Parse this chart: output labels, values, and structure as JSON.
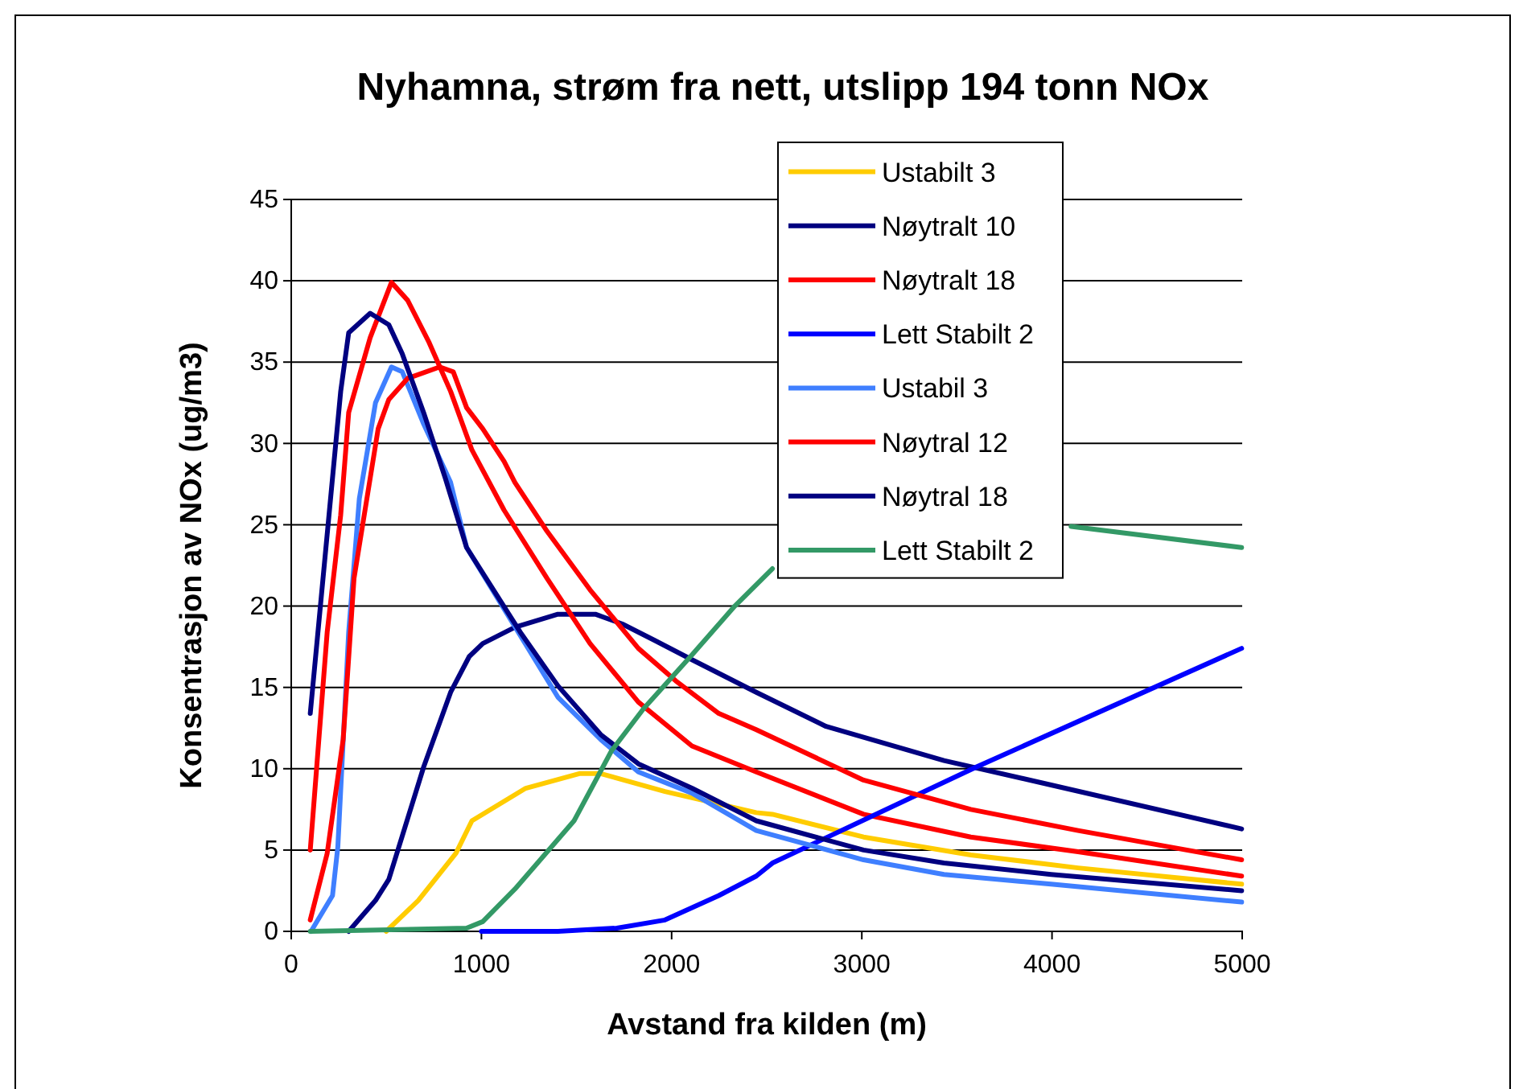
{
  "chart_data": {
    "type": "line",
    "title": "Nyhamna, strøm fra nett, utslipp 194 tonn NOx",
    "xlabel": "Avstand fra kilden (m)",
    "ylabel": "Konsentrasjon av NOx (ug/m3)",
    "xlim": [
      0,
      5000
    ],
    "xticks": [
      0,
      1000,
      2000,
      3000,
      4000,
      5000
    ],
    "ylim": [
      0,
      45
    ],
    "yticks": [
      0,
      5,
      10,
      15,
      20,
      25,
      30,
      35,
      40,
      45
    ],
    "grid": "y",
    "legend": "top right",
    "marker": "none",
    "line_style": "solid",
    "series": [
      {
        "name": "Ustabilt 3",
        "color": "#ffcc00",
        "x": [
          499,
          668,
          866,
          950,
          1233,
          1515,
          1627,
          1965,
          2445,
          2530,
          3009,
          3573,
          4137,
          4997
        ],
        "values": [
          0,
          1.9,
          4.8,
          6.8,
          8.8,
          9.7,
          9.7,
          8.6,
          7.3,
          7.2,
          5.8,
          4.7,
          3.9,
          2.9
        ]
      },
      {
        "name": "Nøytralt 10",
        "color": "#000080",
        "x": [
          302,
          443,
          513,
          696,
          838,
          936,
          1007,
          1176,
          1402,
          1599,
          1740,
          1909,
          2107,
          2445,
          2812,
          3432,
          3995,
          4997
        ],
        "values": [
          0,
          1.9,
          3.2,
          10.1,
          14.7,
          16.9,
          17.7,
          18.7,
          19.5,
          19.5,
          18.9,
          17.9,
          16.7,
          14.7,
          12.6,
          10.5,
          9.0,
          6.3
        ]
      },
      {
        "name": "Nøytralt 18",
        "color": "#ff0000",
        "x": [
          100,
          189,
          260,
          302,
          415,
          527,
          612,
          725,
          838,
          950,
          1119,
          1345,
          1571,
          1825,
          2107,
          2445,
          3009,
          3573,
          4137,
          4997
        ],
        "values": [
          5.0,
          18.4,
          25.6,
          31.9,
          36.5,
          39.9,
          38.8,
          36.2,
          33.2,
          29.6,
          25.9,
          21.7,
          17.7,
          14.1,
          11.4,
          9.8,
          7.2,
          5.8,
          4.9,
          3.4
        ]
      },
      {
        "name": "Lett Stabilt 2",
        "color": "#0000ff",
        "x": [
          1000,
          1402,
          1712,
          1965,
          2248,
          2445,
          2530,
          3601,
          4997
        ],
        "values": [
          0,
          0,
          0.2,
          0.7,
          2.2,
          3.4,
          4.2,
          10.1,
          17.4
        ]
      },
      {
        "name": "Ustabil 3",
        "color": "#3f7fff",
        "x": [
          104,
          217,
          245,
          302,
          358,
          443,
          527,
          584,
          696,
          838,
          922,
          1402,
          1627,
          1825,
          2107,
          2445,
          3009,
          3432,
          3995,
          4997
        ],
        "values": [
          0,
          2.2,
          5.2,
          18.4,
          26.6,
          32.5,
          34.7,
          34.4,
          31.2,
          27.6,
          23.6,
          14.4,
          11.8,
          9.8,
          8.5,
          6.2,
          4.4,
          3.5,
          2.9,
          1.8
        ]
      },
      {
        "name": "Nøytral 12",
        "color": "#ff0000",
        "x": [
          100,
          189,
          273,
          330,
          457,
          513,
          612,
          781,
          852,
          922,
          1007,
          1119,
          1176,
          1345,
          1571,
          1825,
          2022,
          2248,
          2445,
          3009,
          3573,
          4137,
          4997
        ],
        "values": [
          0.7,
          4.8,
          11.8,
          21.7,
          30.9,
          32.7,
          34.0,
          34.7,
          34.4,
          32.2,
          30.9,
          28.9,
          27.6,
          24.6,
          21.0,
          17.4,
          15.4,
          13.4,
          12.4,
          9.3,
          7.5,
          6.2,
          4.4
        ]
      },
      {
        "name": "Nøytral 18",
        "color": "#000080",
        "x": [
          100,
          260,
          302,
          415,
          513,
          584,
          696,
          809,
          922,
          1063,
          1204,
          1402,
          1627,
          1825,
          2107,
          2445,
          3009,
          3432,
          3995,
          4997
        ],
        "values": [
          13.4,
          33.2,
          36.8,
          38.0,
          37.3,
          35.5,
          31.9,
          27.9,
          23.6,
          21.0,
          18.4,
          15.1,
          12.1,
          10.3,
          8.8,
          6.8,
          5.0,
          4.2,
          3.5,
          2.5
        ]
      },
      {
        "name": "Lett Stabilt 2",
        "color": "#339966",
        "x": [
          100,
          922,
          1007,
          1176,
          1487,
          1684,
          1853,
          2107,
          2332,
          2530,
          3000,
          3500,
          4100,
          4997
        ],
        "values": [
          0,
          0.2,
          0.6,
          2.6,
          6.8,
          11.1,
          13.7,
          17.0,
          20.0,
          22.3,
          null,
          null,
          24.9,
          23.6
        ]
      }
    ]
  }
}
